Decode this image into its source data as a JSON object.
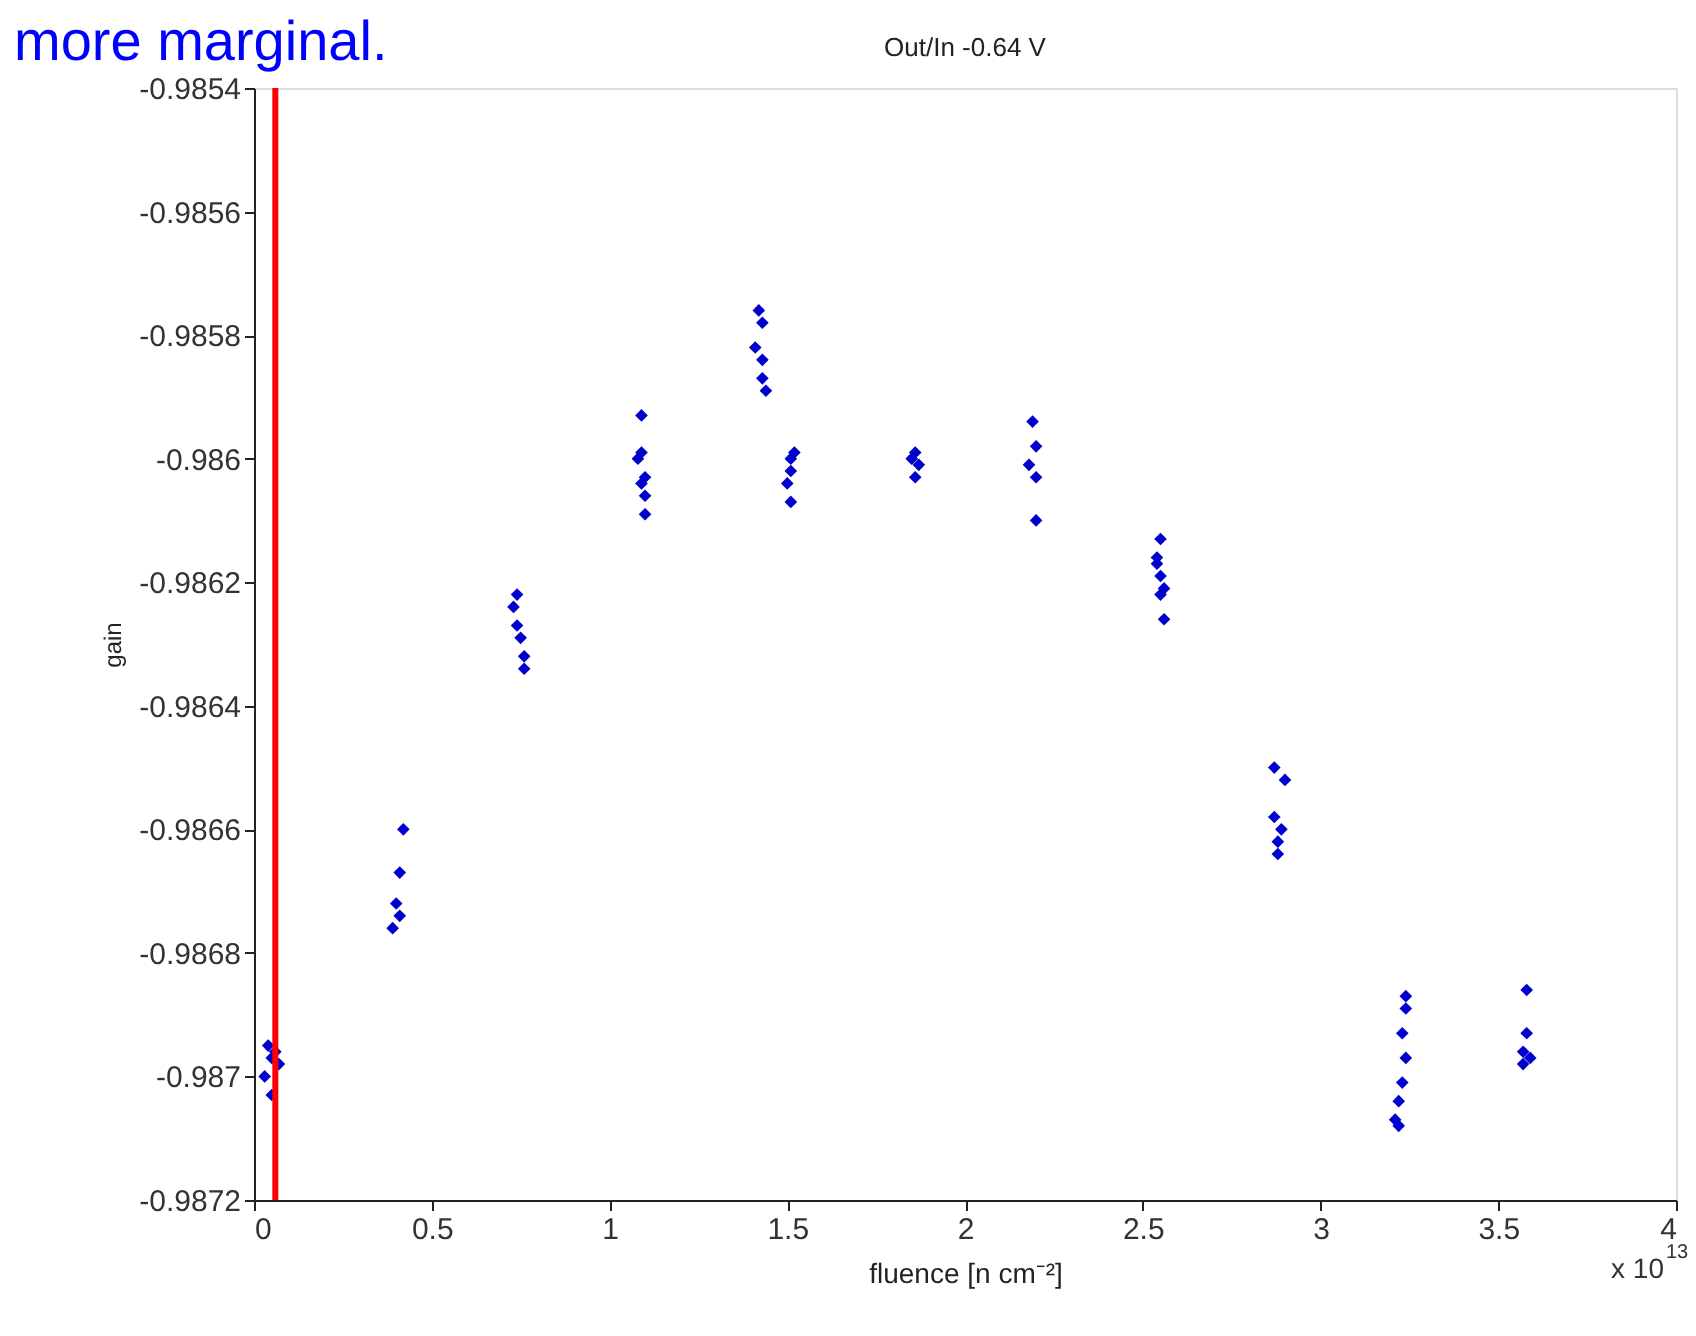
{
  "chart_data": {
    "type": "scatter",
    "title": "Out/In -0.64 V",
    "xlabel": "fluence  [n cm⁻²]",
    "ylabel": "gain",
    "annotations": [
      "more marginal.",
      "x 10$^{13}$"
    ],
    "xlim": [
      0,
      4
    ],
    "xticks": [
      0,
      0.5,
      1,
      1.5,
      2,
      2.5,
      3,
      3.5,
      4
    ],
    "ylim": [
      -0.9872,
      -0.9854
    ],
    "yticks": [
      -0.9872,
      -0.987,
      -0.9868,
      -0.9866,
      -0.9864,
      -0.9862,
      -0.986,
      -0.9858,
      -0.9856,
      -0.9854
    ],
    "grid": false,
    "marker": "diamond",
    "ref_lines": [
      {
        "axis": "x",
        "value": 0.06,
        "color": "#ff0000"
      }
    ],
    "series": [
      {
        "color": "#0000cc",
        "x": [
          0.04,
          0.06,
          0.05,
          0.07,
          0.03,
          0.05,
          0.42,
          0.41,
          0.4,
          0.41,
          0.39,
          0.74,
          0.73,
          0.74,
          0.75,
          0.76,
          0.76,
          1.09,
          1.09,
          1.08,
          1.1,
          1.09,
          1.1,
          1.1,
          1.42,
          1.43,
          1.41,
          1.43,
          1.43,
          1.44,
          1.52,
          1.51,
          1.51,
          1.5,
          1.51,
          1.86,
          1.85,
          1.87,
          1.86,
          2.19,
          2.2,
          2.18,
          2.2,
          2.2,
          2.55,
          2.54,
          2.54,
          2.55,
          2.56,
          2.55,
          2.56,
          2.87,
          2.9,
          2.87,
          2.89,
          2.88,
          2.88,
          3.24,
          3.24,
          3.23,
          3.24,
          3.23,
          3.22,
          3.21,
          3.22,
          3.58,
          3.58,
          3.57,
          3.59,
          3.57
        ],
        "values": [
          -0.98695,
          -0.98696,
          -0.98697,
          -0.98698,
          -0.987,
          -0.98703,
          -0.9866,
          -0.98667,
          -0.98672,
          -0.98674,
          -0.98676,
          -0.98622,
          -0.98624,
          -0.98627,
          -0.98629,
          -0.98632,
          -0.98634,
          -0.98593,
          -0.98599,
          -0.986,
          -0.98603,
          -0.98604,
          -0.98606,
          -0.98609,
          -0.98576,
          -0.98578,
          -0.98582,
          -0.98584,
          -0.98587,
          -0.98589,
          -0.98599,
          -0.986,
          -0.98602,
          -0.98604,
          -0.98607,
          -0.98599,
          -0.986,
          -0.98601,
          -0.98603,
          -0.98594,
          -0.98598,
          -0.98601,
          -0.98603,
          -0.9861,
          -0.98613,
          -0.98616,
          -0.98617,
          -0.98619,
          -0.98621,
          -0.98622,
          -0.98626,
          -0.9865,
          -0.98652,
          -0.98658,
          -0.9866,
          -0.98662,
          -0.98664,
          -0.98687,
          -0.98689,
          -0.98693,
          -0.98697,
          -0.98701,
          -0.98704,
          -0.98707,
          -0.98708,
          -0.98686,
          -0.98693,
          -0.98696,
          -0.98697,
          -0.98698
        ]
      }
    ]
  }
}
